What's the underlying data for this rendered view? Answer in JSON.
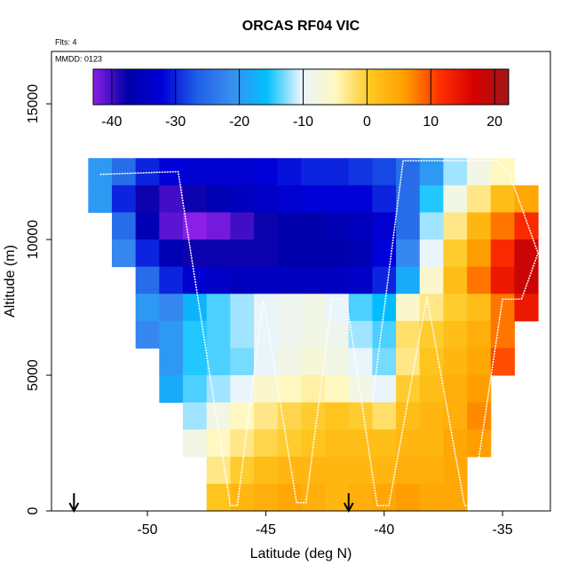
{
  "chart_data": {
    "type": "heatmap",
    "title": "ORCAS RF04 VIC",
    "subtitle": "Flts: 4",
    "annotation": "MMDD: 0123",
    "x_label": "Latitude (deg N)",
    "y_label": "Altitude (m)",
    "xlim": [
      -54.05,
      -32.98
    ],
    "xticks": [
      -50,
      -45,
      -40,
      -35
    ],
    "ylim": [
      0,
      16930
    ],
    "yticks": [
      0,
      5000,
      10000,
      15000
    ],
    "zlim": [
      -42.9,
      22.2
    ],
    "zticks": [
      -40,
      -30,
      -20,
      -10,
      0,
      10,
      20
    ],
    "colors": [
      "#8b1fe8",
      "#0000a8",
      "#0000d8",
      "#1f5fe8",
      "#3a8ef0",
      "#00bfff",
      "#e8f4ff",
      "#fff8c0",
      "#ffc820",
      "#ffa000",
      "#ff3000",
      "#d80000",
      "#a01818"
    ],
    "x": [
      -52,
      -51,
      -50,
      -49,
      -48,
      -47,
      -46,
      -45,
      -44,
      -43,
      -42,
      -41,
      -40,
      -39,
      -38,
      -37,
      -36,
      -35,
      -34
    ],
    "y": [
      12500,
      11500,
      10500,
      9500,
      8500,
      7500,
      6500,
      5500,
      4500,
      3500,
      2500,
      1500,
      500
    ],
    "z": [
      [
        -20,
        -25,
        -30,
        -32,
        -33,
        -33,
        -33,
        -32,
        -31,
        -30,
        -30,
        -29,
        -28,
        -25,
        -20,
        -12,
        -8,
        -5,
        null
      ],
      [
        -20,
        -30,
        -38,
        -40,
        -38,
        -36,
        -35,
        -34,
        -33,
        -32,
        -32,
        -32,
        -30,
        -25,
        -15,
        -8,
        -3,
        2,
        5
      ],
      [
        null,
        -25,
        -36,
        -41,
        -43,
        -42,
        -40,
        -38,
        -37,
        -37,
        -36,
        -35,
        -33,
        -25,
        -12,
        -3,
        3,
        8,
        12
      ],
      [
        null,
        -22,
        -30,
        -36,
        -38,
        -38,
        -38,
        -38,
        -37,
        -37,
        -37,
        -36,
        -32,
        -22,
        -10,
        0,
        6,
        12,
        18
      ],
      [
        null,
        null,
        -25,
        -30,
        -33,
        -34,
        -35,
        -35,
        -35,
        -35,
        -35,
        -34,
        -30,
        -18,
        -6,
        2,
        8,
        14,
        18
      ],
      [
        null,
        null,
        -20,
        -22,
        -17,
        -14,
        -12,
        -10,
        -9,
        -8,
        -10,
        -14,
        -16,
        -6,
        -3,
        0,
        2,
        8,
        14
      ],
      [
        null,
        null,
        -22,
        -20,
        -15,
        -14,
        -12,
        -10,
        -9,
        -8,
        -9,
        -12,
        -14,
        -2,
        0,
        2,
        4,
        8,
        null
      ],
      [
        null,
        null,
        null,
        -20,
        -15,
        -14,
        -13,
        -10,
        -8,
        -7,
        -8,
        -10,
        -13,
        -3,
        1,
        3,
        5,
        10,
        null
      ],
      [
        null,
        null,
        null,
        -18,
        -14,
        -12,
        -10,
        -6,
        -5,
        -4,
        -5,
        -8,
        -10,
        0,
        2,
        4,
        6,
        null,
        null
      ],
      [
        null,
        null,
        null,
        null,
        -12,
        -8,
        -5,
        -3,
        -1,
        0,
        1,
        0,
        -2,
        2,
        3,
        4,
        7,
        null,
        null
      ],
      [
        null,
        null,
        null,
        null,
        -8,
        -5,
        -3,
        -1,
        0,
        1,
        2,
        2,
        2,
        3,
        3,
        5,
        6,
        null,
        null
      ],
      [
        null,
        null,
        null,
        null,
        null,
        -3,
        0,
        2,
        3,
        3,
        3,
        3,
        3,
        4,
        4,
        5,
        null,
        null,
        null
      ],
      [
        null,
        null,
        null,
        null,
        null,
        1,
        3,
        4,
        5,
        4,
        3,
        4,
        5,
        6,
        5,
        5,
        null,
        null,
        null
      ]
    ],
    "track": {
      "color": "#ffffff",
      "x": [
        -52,
        -48.7,
        -46.5,
        -46.2,
        -45.1,
        -43.7,
        -43.3,
        -42.2,
        -41.6,
        -40.3,
        -39.8,
        -38.2,
        -36.6,
        -36.3,
        -35.0,
        -34.2,
        null,
        -40.5,
        -39.2,
        -35.2,
        -34.7,
        -33.5,
        -34.2
      ],
      "y": [
        12400,
        12500,
        200,
        200,
        7800,
        300,
        300,
        7800,
        7800,
        200,
        200,
        7900,
        200,
        200,
        7800,
        7800,
        null,
        4000,
        12900,
        12900,
        12400,
        9500,
        7800
      ]
    },
    "arrows_x": [
      -53.1,
      -41.5
    ]
  }
}
